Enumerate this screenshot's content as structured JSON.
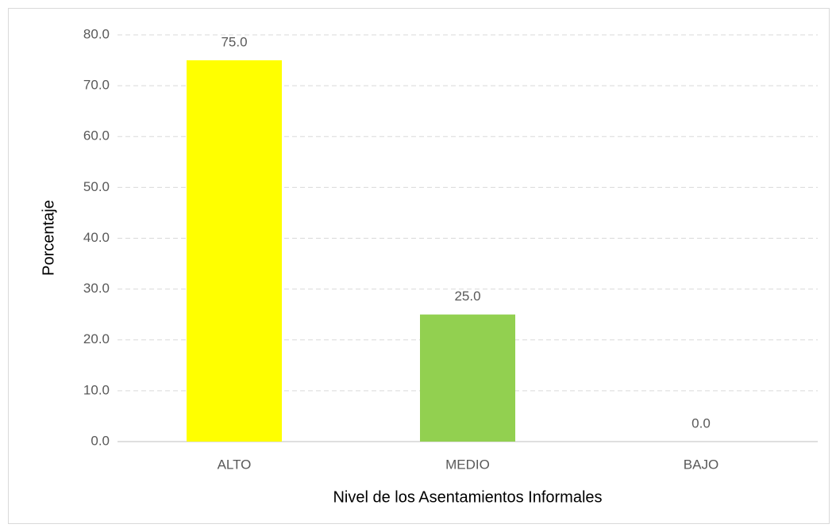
{
  "chart_data": {
    "type": "bar",
    "categories": [
      "ALTO",
      "MEDIO",
      "BAJO"
    ],
    "values": [
      75.0,
      25.0,
      0.0
    ],
    "value_labels": [
      "75.0",
      "25.0",
      "0.0"
    ],
    "colors": [
      "#ffff00",
      "#92d050",
      null
    ],
    "xlabel": "Nivel de los Asentamientos Informales",
    "ylabel": "Porcentaje",
    "ylim": [
      0,
      80
    ],
    "yticks": [
      {
        "value": 0,
        "label": "0.0"
      },
      {
        "value": 10,
        "label": "10.0"
      },
      {
        "value": 20,
        "label": "20.0"
      },
      {
        "value": 30,
        "label": "30.0"
      },
      {
        "value": 40,
        "label": "40.0"
      },
      {
        "value": 50,
        "label": "50.0"
      },
      {
        "value": 60,
        "label": "60.0"
      },
      {
        "value": 70,
        "label": "70.0"
      },
      {
        "value": 80,
        "label": "80.0"
      }
    ],
    "grid": true
  }
}
